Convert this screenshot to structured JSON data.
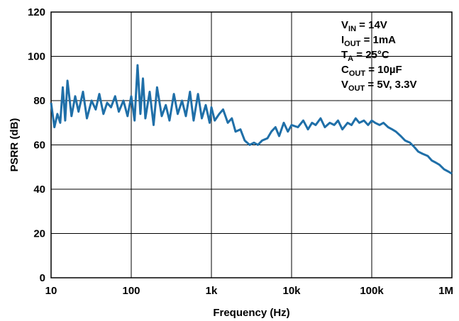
{
  "chart_data": {
    "type": "line",
    "xlabel": "Frequency (Hz)",
    "ylabel": "PSRR (dB)",
    "x_scale": "log",
    "xlim": [
      10,
      1000000
    ],
    "ylim": [
      0,
      120
    ],
    "grid": true,
    "x_ticks": [
      10,
      100,
      1000,
      10000,
      100000,
      1000000
    ],
    "x_tick_labels": [
      "10",
      "100",
      "1k",
      "10k",
      "100k",
      "1M"
    ],
    "y_ticks": [
      0,
      20,
      40,
      60,
      80,
      100,
      120
    ],
    "y_tick_labels": [
      "0",
      "20",
      "40",
      "60",
      "80",
      "100",
      "120"
    ],
    "conditions": [
      {
        "main": "V",
        "sub": "IN",
        "rest": " = 14V"
      },
      {
        "main": "I",
        "sub": "OUT",
        "rest": " = 1mA"
      },
      {
        "main": "T",
        "sub": "A",
        "rest": " = 25°C"
      },
      {
        "main": "C",
        "sub": "OUT",
        "rest": " = 10µF"
      },
      {
        "main": "V",
        "sub": "OUT",
        "rest": " = 5V, 3.3V"
      }
    ],
    "series": [
      {
        "color": "#1f6fa8",
        "x": [
          10,
          11,
          12,
          13,
          14,
          15,
          16,
          18,
          20,
          22,
          25,
          28,
          32,
          36,
          40,
          45,
          50,
          56,
          63,
          70,
          80,
          90,
          100,
          110,
          120,
          130,
          140,
          150,
          170,
          190,
          210,
          240,
          270,
          300,
          340,
          380,
          430,
          480,
          540,
          600,
          680,
          760,
          850,
          950,
          1000,
          1100,
          1250,
          1400,
          1600,
          1800,
          2000,
          2300,
          2600,
          3000,
          3400,
          3800,
          4300,
          5000,
          5600,
          6300,
          7000,
          8000,
          9000,
          10000,
          12000,
          14000,
          16000,
          18000,
          20000,
          23000,
          26000,
          30000,
          34000,
          38000,
          43000,
          50000,
          56000,
          63000,
          70000,
          80000,
          90000,
          100000,
          110000,
          125000,
          140000,
          160000,
          180000,
          200000,
          230000,
          260000,
          300000,
          340000,
          380000,
          430000,
          500000,
          560000,
          630000,
          700000,
          800000,
          900000,
          1000000
        ],
        "y": [
          79,
          68,
          74,
          70,
          86,
          71,
          89,
          73,
          82,
          75,
          84,
          72,
          80,
          76,
          83,
          74,
          79,
          77,
          82,
          75,
          80,
          73,
          82,
          71,
          96,
          74,
          90,
          72,
          84,
          69,
          86,
          73,
          78,
          71,
          83,
          74,
          80,
          73,
          84,
          71,
          83,
          72,
          78,
          70,
          77,
          71,
          74,
          76,
          70,
          72,
          66,
          67,
          62,
          60,
          61,
          60,
          62,
          63,
          66,
          68,
          64,
          70,
          66,
          69,
          68,
          71,
          67,
          70,
          69,
          72,
          68,
          70,
          69,
          71,
          67,
          70,
          69,
          72,
          70,
          71,
          69,
          71,
          70,
          69,
          70,
          68,
          67,
          66,
          64,
          62,
          61,
          59,
          57,
          56,
          55,
          53,
          52,
          51,
          49,
          48,
          47
        ]
      }
    ]
  }
}
